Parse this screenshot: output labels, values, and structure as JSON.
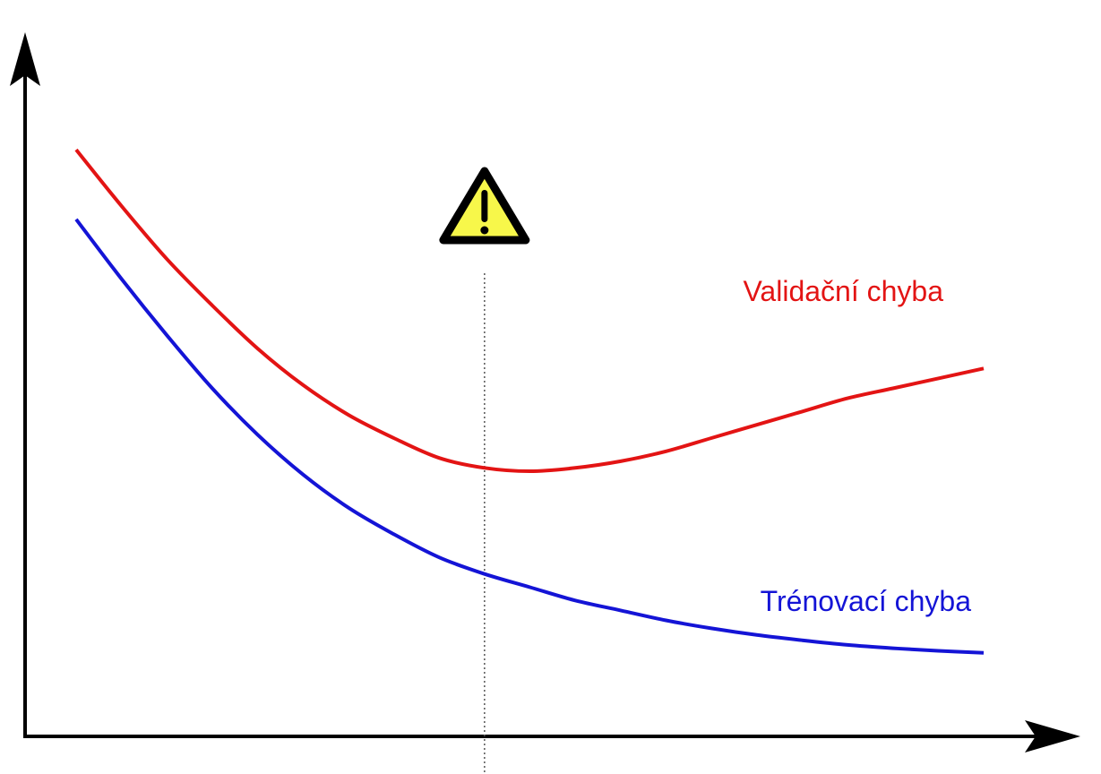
{
  "chart_data": {
    "type": "line",
    "title": "",
    "xlabel": "",
    "ylabel": "",
    "grid": false,
    "legend": "none",
    "axis_ticks": "none",
    "xlim": [
      0,
      1
    ],
    "ylim": [
      0,
      1
    ],
    "series": [
      {
        "name": "Validační chyba",
        "color": "#e31414",
        "x": [
          0.0,
          0.05,
          0.1,
          0.15,
          0.2,
          0.25,
          0.3,
          0.35,
          0.4,
          0.45,
          0.5,
          0.55,
          0.6,
          0.65,
          0.7,
          0.75,
          0.8,
          0.85,
          0.9,
          0.95,
          1.0
        ],
        "y": [
          0.885,
          0.8,
          0.72,
          0.65,
          0.585,
          0.53,
          0.485,
          0.45,
          0.42,
          0.405,
          0.4,
          0.405,
          0.415,
          0.43,
          0.45,
          0.47,
          0.49,
          0.51,
          0.525,
          0.54,
          0.555
        ]
      },
      {
        "name": "Trénovací chyba",
        "color": "#1414d6",
        "x": [
          0.0,
          0.05,
          0.1,
          0.15,
          0.2,
          0.25,
          0.3,
          0.35,
          0.4,
          0.45,
          0.5,
          0.55,
          0.6,
          0.65,
          0.7,
          0.75,
          0.8,
          0.85,
          0.9,
          0.95,
          1.0
        ],
        "y": [
          0.78,
          0.69,
          0.605,
          0.525,
          0.455,
          0.395,
          0.345,
          0.305,
          0.27,
          0.245,
          0.225,
          0.205,
          0.19,
          0.175,
          0.163,
          0.153,
          0.145,
          0.138,
          0.133,
          0.129,
          0.126
        ]
      }
    ],
    "annotations": {
      "vertical_marker_x": 0.45,
      "warning_icon": "warning-triangle-icon",
      "warning_color": "#f7f74a"
    }
  }
}
